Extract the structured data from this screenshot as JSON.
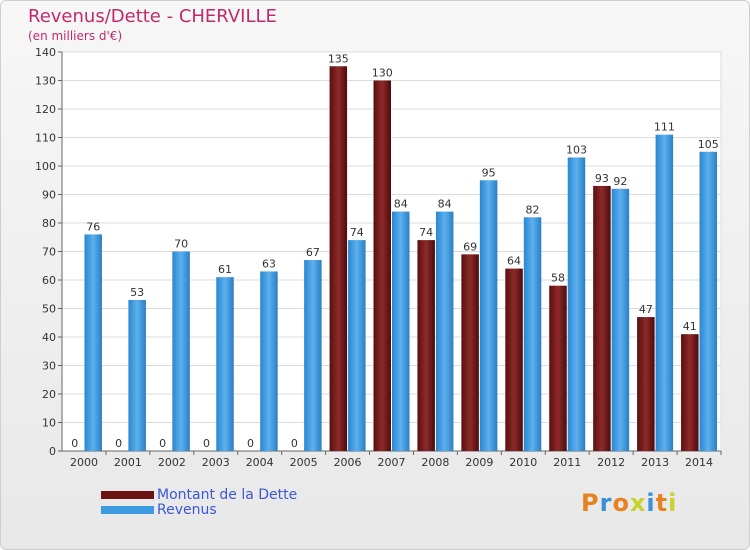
{
  "title": "Revenus/Dette - CHERVILLE",
  "subtitle": "(en milliers d'€)",
  "logo": "Proxiti",
  "colors": {
    "dette": "#7a1c1c",
    "revenus": "#3d9be0",
    "title": "#c02a6b",
    "legend_text": "#3a58d6"
  },
  "chart_data": {
    "type": "bar",
    "categories": [
      "2000",
      "2001",
      "2002",
      "2003",
      "2004",
      "2005",
      "2006",
      "2007",
      "2008",
      "2009",
      "2010",
      "2011",
      "2012",
      "2013",
      "2014"
    ],
    "series": [
      {
        "name": "Montant de la Dette",
        "values": [
          0,
          0,
          0,
          0,
          0,
          0,
          135,
          130,
          74,
          69,
          64,
          58,
          93,
          47,
          41
        ]
      },
      {
        "name": "Revenus",
        "values": [
          76,
          53,
          70,
          61,
          63,
          67,
          74,
          84,
          84,
          95,
          82,
          103,
          92,
          111,
          105
        ]
      }
    ],
    "ylim": [
      0,
      140
    ],
    "yticks": [
      0,
      10,
      20,
      30,
      40,
      50,
      60,
      70,
      80,
      90,
      100,
      110,
      120,
      130,
      140
    ],
    "grid": true,
    "legend": "bottom-left"
  }
}
